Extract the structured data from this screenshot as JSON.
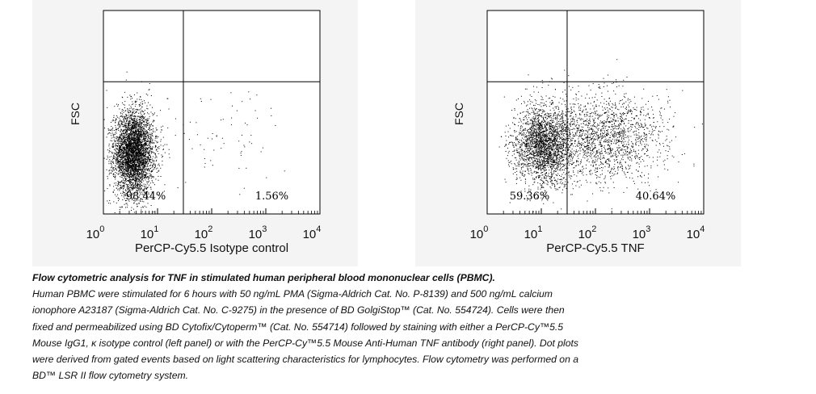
{
  "chart_data": [
    {
      "type": "scatter",
      "panel": "left",
      "xlabel": "PerCP-Cy5.5 Isotype control",
      "ylabel": "FSC",
      "x_scale": "log",
      "xlim": [
        1,
        10000
      ],
      "x_ticks": [
        {
          "base": "10",
          "exp": "0"
        },
        {
          "base": "10",
          "exp": "1"
        },
        {
          "base": "10",
          "exp": "2"
        },
        {
          "base": "10",
          "exp": "3"
        },
        {
          "base": "10",
          "exp": "4"
        }
      ],
      "gate_x": 30,
      "gate_y_fraction": 0.65,
      "quadrant_labels": [
        "98.44%",
        "1.56%"
      ],
      "quadrant_percent": [
        98.44,
        1.56
      ],
      "clusters": [
        {
          "x_log_center": 0.55,
          "x_log_spread": 0.18,
          "y_fraction_center": 0.3,
          "y_fraction_spread": 0.1,
          "share": 0.92
        },
        {
          "x_log_center": 0.6,
          "x_log_spread": 0.3,
          "y_fraction_center": 0.32,
          "y_fraction_spread": 0.14,
          "share": 0.07
        },
        {
          "x_log_center": 2.3,
          "x_log_spread": 0.55,
          "y_fraction_center": 0.4,
          "y_fraction_spread": 0.12,
          "share": 0.015
        }
      ]
    },
    {
      "type": "scatter",
      "panel": "right",
      "xlabel": "PerCP-Cy5.5 TNF",
      "ylabel": "FSC",
      "x_scale": "log",
      "xlim": [
        1,
        10000
      ],
      "x_ticks": [
        {
          "base": "10",
          "exp": "0"
        },
        {
          "base": "10",
          "exp": "1"
        },
        {
          "base": "10",
          "exp": "2"
        },
        {
          "base": "10",
          "exp": "3"
        },
        {
          "base": "10",
          "exp": "4"
        }
      ],
      "gate_x": 30,
      "gate_y_fraction": 0.65,
      "quadrant_labels": [
        "59.36%",
        "40.64%"
      ],
      "quadrant_percent": [
        59.36,
        40.64
      ],
      "clusters": [
        {
          "x_log_center": 1.05,
          "x_log_spread": 0.28,
          "y_fraction_center": 0.34,
          "y_fraction_spread": 0.1,
          "share": 0.6
        },
        {
          "x_log_center": 2.15,
          "x_log_spread": 0.55,
          "y_fraction_center": 0.38,
          "y_fraction_spread": 0.11,
          "share": 0.4
        }
      ]
    }
  ],
  "caption": {
    "title": "Flow cytometric analysis for TNF in stimulated human peripheral blood mononuclear cells (PBMC).",
    "lines": [
      "Human PBMC were stimulated for 6 hours with 50 ng/mL PMA (Sigma-Aldrich Cat. No. P-8139) and 500 ng/mL calcium",
      "ionophore A23187 (Sigma-Aldrich Cat. No. C-9275) in the presence of BD GolgiStop™ (Cat. No. 554724).  Cells were then",
      "fixed and permeabilized using BD Cytofix/Cytoperm™ (Cat. No. 554714) followed by staining with either a PerCP-Cy™5.5",
      "Mouse IgG1, κ isotype control (left panel) or with the PerCP-Cy™5.5 Mouse Anti-Human TNF antibody (right panel).  Dot plots",
      "were derived from gated events based on light scattering characteristics for lymphocytes.  Flow cytometry was performed on a",
      "BD™ LSR II flow cytometry system."
    ]
  }
}
